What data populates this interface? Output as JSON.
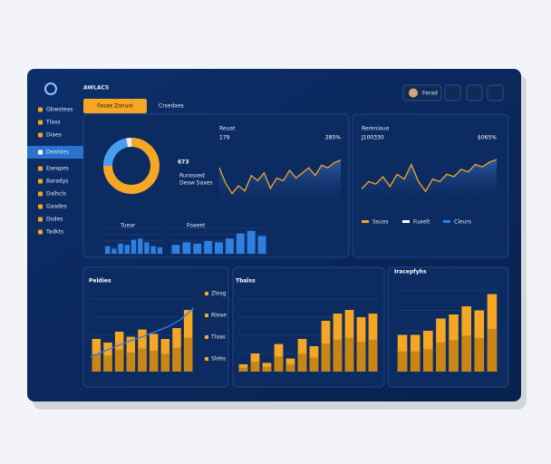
{
  "app": {
    "title": "AWLACS",
    "tabs": [
      "Fasae Zonuoi",
      "Crsedaes"
    ],
    "user": "Ferad"
  },
  "sidebar": {
    "items": [
      "Gbwsteas",
      "Tlaxs",
      "Diaes",
      "Deahtes",
      "Eseapes",
      "Baradys",
      "Dalhcls",
      "Gaades",
      "Dsdes",
      "Tadkts"
    ],
    "active": 3
  },
  "summary": {
    "donut": {
      "type": "pie",
      "values": [
        75,
        22,
        3
      ],
      "colors": [
        "#f5a623",
        "#4a9cf0",
        "#e8eef8"
      ]
    },
    "total": "673",
    "captions": [
      "Rurasxed",
      "Deaw Saxes"
    ],
    "bars_a": {
      "type": "bar",
      "label": "Tuear",
      "values": [
        30,
        20,
        40,
        35,
        55,
        60,
        45,
        30,
        25
      ],
      "color": "#2f7fe0",
      "ylim": [
        0,
        100
      ]
    },
    "bars_b": {
      "type": "bar",
      "label": "Foaeet",
      "values": [
        35,
        45,
        40,
        50,
        45,
        60,
        80,
        90,
        70
      ],
      "color": "#2f7fe0",
      "ylim": [
        0,
        100
      ]
    }
  },
  "trend_a": {
    "type": "line",
    "label": "Reuat",
    "value": "179",
    "change": "285%",
    "color": "#f5a623",
    "ylim": [
      0,
      100
    ],
    "values": [
      70,
      40,
      20,
      35,
      25,
      55,
      45,
      60,
      30,
      50,
      45,
      65,
      50,
      60,
      70,
      55,
      75,
      70,
      80,
      85
    ]
  },
  "trend_b": {
    "type": "line",
    "label": "Rereniaue",
    "value": "J100330",
    "change": "$065%",
    "color": "#f5a623",
    "ylim": [
      0,
      100
    ],
    "values": [
      25,
      40,
      35,
      50,
      30,
      55,
      45,
      75,
      40,
      20,
      45,
      40,
      55,
      50,
      65,
      60,
      75,
      70,
      80,
      85
    ],
    "legend": [
      "Ssuos",
      "Fuaelt",
      "Cleurs"
    ]
  },
  "panels": [
    {
      "type": "bar",
      "title": "Peldies",
      "color": "#f5a623",
      "ylim": [
        0,
        100
      ],
      "values": [
        45,
        40,
        55,
        48,
        58,
        52,
        45,
        60,
        85
      ],
      "line": {
        "values": [
          20,
          28,
          35,
          42,
          48,
          55,
          62,
          72,
          88
        ],
        "color": "#3b7de0"
      },
      "legend": [
        "Zlosg",
        "Rleae",
        "Tlaas",
        "Slebs"
      ]
    },
    {
      "type": "bar",
      "title": "Tbalss",
      "color": "#f5a623",
      "ylim": [
        0,
        100
      ],
      "values": [
        10,
        25,
        12,
        38,
        18,
        45,
        35,
        70,
        80,
        85,
        75,
        80
      ]
    },
    {
      "type": "bar",
      "title": "Iracepfyhs",
      "color": "#f5a623",
      "ylim": [
        0,
        100
      ],
      "values": [
        45,
        45,
        50,
        65,
        70,
        80,
        75,
        95
      ]
    }
  ]
}
